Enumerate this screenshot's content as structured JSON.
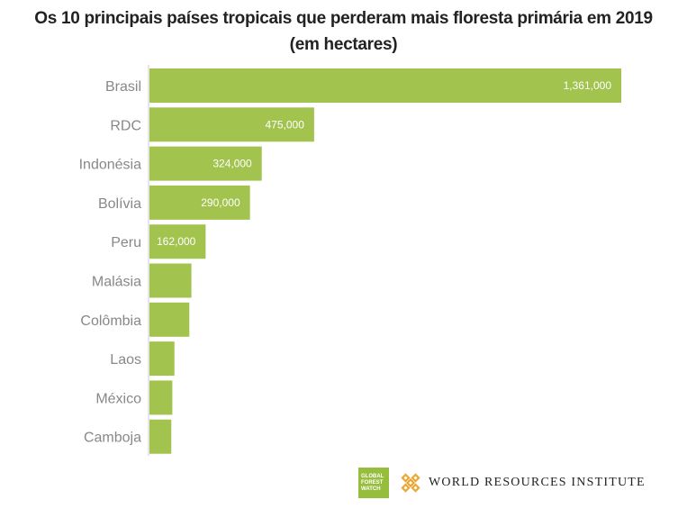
{
  "chart_data": {
    "type": "bar",
    "orientation": "horizontal",
    "title": "Os 10 principais países tropicais que perderam mais floresta primária em 2019 (em hectares)",
    "categories": [
      "Brasil",
      "RDC",
      "Indonésia",
      "Bolívia",
      "Peru",
      "Malásia",
      "Colômbia",
      "Laos",
      "México",
      "Camboja"
    ],
    "values": [
      1361000,
      475000,
      324000,
      290000,
      162000,
      121000,
      115000,
      72000,
      66000,
      63000
    ],
    "data_labels": [
      "1,361,000",
      "475,000",
      "324,000",
      "290,000",
      "162,000",
      "",
      "",
      "",
      "",
      ""
    ],
    "bar_color": "#a2c44f",
    "xlim": [
      0,
      1361000
    ],
    "grid": false,
    "legend": "none"
  },
  "logos": {
    "gfw_lines": [
      "GLOBAL",
      "FOREST",
      "WATCH"
    ],
    "wri_name": "WORLD RESOURCES INSTITUTE",
    "gfw_color": "#97bd3d",
    "wri_mark_color": "#e8a838"
  }
}
